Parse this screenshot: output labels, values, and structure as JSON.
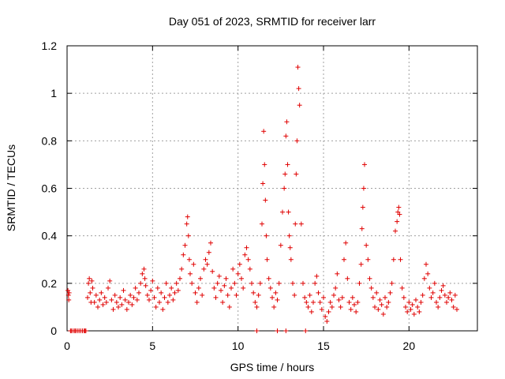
{
  "chart_data": {
    "type": "scatter",
    "title": "Day 051 of 2023, SRMTID for receiver larr",
    "xlabel": "GPS time / hours",
    "ylabel": "SRMTID / TECUs",
    "xlim": [
      0,
      24
    ],
    "ylim": [
      0,
      1.2
    ],
    "xticks": [
      0,
      5,
      10,
      15,
      20
    ],
    "xtick_labels": [
      "0",
      "5",
      "10",
      "15",
      "20"
    ],
    "yticks": [
      0,
      0.2,
      0.4,
      0.6,
      0.8,
      1.0,
      1.2
    ],
    "ytick_labels": [
      "0",
      "0.2",
      "0.4",
      "0.6",
      "0.8",
      "1",
      "1.2"
    ],
    "grid": true,
    "marker": "+",
    "marker_color": "#e00000",
    "series": [
      {
        "name": "SRMTID",
        "x": [
          0.05,
          0.08,
          0.1,
          0.12,
          0.2,
          0.25,
          0.35,
          0.45,
          0.5,
          0.6,
          0.7,
          0.8,
          0.9,
          1.0,
          1.05,
          1.1,
          1.2,
          1.25,
          1.3,
          1.35,
          1.4,
          1.45,
          1.5,
          1.6,
          1.7,
          1.8,
          1.9,
          2.0,
          2.1,
          2.2,
          2.3,
          2.4,
          2.5,
          2.6,
          2.7,
          2.8,
          2.9,
          3.0,
          3.1,
          3.2,
          3.3,
          3.4,
          3.5,
          3.6,
          3.7,
          3.8,
          3.9,
          4.0,
          4.1,
          4.2,
          4.3,
          4.4,
          4.5,
          4.55,
          4.6,
          4.7,
          4.8,
          4.9,
          5.0,
          5.1,
          5.2,
          5.3,
          5.4,
          5.5,
          5.6,
          5.7,
          5.8,
          5.9,
          6.0,
          6.1,
          6.2,
          6.3,
          6.4,
          6.5,
          6.6,
          6.7,
          6.8,
          6.9,
          7.0,
          7.05,
          7.1,
          7.15,
          7.2,
          7.3,
          7.4,
          7.5,
          7.6,
          7.7,
          7.8,
          7.9,
          8.0,
          8.1,
          8.2,
          8.3,
          8.4,
          8.5,
          8.6,
          8.7,
          8.8,
          8.9,
          9.0,
          9.1,
          9.2,
          9.3,
          9.4,
          9.5,
          9.6,
          9.7,
          9.8,
          9.9,
          10.0,
          10.1,
          10.2,
          10.3,
          10.4,
          10.5,
          10.6,
          10.7,
          10.8,
          10.9,
          11.0,
          11.1,
          11.2,
          11.3,
          11.4,
          11.45,
          11.5,
          11.55,
          11.6,
          11.65,
          11.7,
          11.8,
          11.9,
          12.0,
          12.1,
          12.2,
          12.3,
          12.4,
          12.5,
          12.6,
          12.7,
          12.75,
          12.8,
          12.85,
          12.9,
          12.95,
          13.0,
          13.05,
          13.1,
          13.2,
          13.3,
          13.35,
          13.4,
          13.45,
          13.5,
          13.55,
          13.6,
          13.7,
          13.8,
          13.9,
          14.0,
          14.1,
          14.2,
          14.3,
          14.4,
          14.5,
          14.6,
          14.7,
          14.8,
          14.9,
          15.0,
          15.1,
          15.2,
          15.3,
          15.4,
          15.5,
          15.6,
          15.7,
          15.8,
          15.9,
          16.0,
          16.1,
          16.2,
          16.3,
          16.4,
          16.5,
          16.6,
          16.7,
          16.8,
          16.9,
          17.0,
          17.1,
          17.2,
          17.25,
          17.3,
          17.35,
          17.4,
          17.5,
          17.6,
          17.7,
          17.8,
          17.9,
          18.0,
          18.1,
          18.2,
          18.3,
          18.4,
          18.5,
          18.6,
          18.7,
          18.8,
          18.9,
          19.0,
          19.1,
          19.2,
          19.3,
          19.35,
          19.4,
          19.45,
          19.5,
          19.6,
          19.7,
          19.8,
          19.9,
          20.0,
          20.1,
          20.2,
          20.3,
          20.4,
          20.5,
          20.6,
          20.7,
          20.8,
          20.9,
          21.0,
          21.1,
          21.2,
          21.3,
          21.4,
          21.5,
          21.6,
          21.7,
          21.8,
          21.9,
          22.0,
          22.1,
          22.2,
          22.3,
          22.4,
          22.5,
          22.6,
          22.7,
          22.8,
          11.1,
          12.3,
          12.8,
          13.95
        ],
        "y": [
          0.17,
          0.15,
          0.13,
          0.16,
          0.0,
          0.0,
          0.0,
          0.0,
          0.0,
          0.0,
          0.0,
          0.0,
          0.0,
          0.0,
          0.0,
          0.0,
          0.14,
          0.2,
          0.22,
          0.16,
          0.12,
          0.21,
          0.18,
          0.12,
          0.15,
          0.1,
          0.13,
          0.16,
          0.11,
          0.14,
          0.12,
          0.18,
          0.21,
          0.13,
          0.09,
          0.15,
          0.12,
          0.1,
          0.14,
          0.11,
          0.17,
          0.13,
          0.09,
          0.12,
          0.15,
          0.11,
          0.14,
          0.18,
          0.13,
          0.16,
          0.2,
          0.24,
          0.26,
          0.22,
          0.19,
          0.15,
          0.13,
          0.17,
          0.21,
          0.14,
          0.1,
          0.18,
          0.12,
          0.16,
          0.09,
          0.14,
          0.2,
          0.12,
          0.15,
          0.18,
          0.13,
          0.16,
          0.2,
          0.17,
          0.22,
          0.26,
          0.32,
          0.36,
          0.45,
          0.48,
          0.4,
          0.3,
          0.24,
          0.2,
          0.28,
          0.16,
          0.12,
          0.18,
          0.22,
          0.15,
          0.26,
          0.3,
          0.28,
          0.33,
          0.37,
          0.25,
          0.18,
          0.14,
          0.2,
          0.23,
          0.17,
          0.12,
          0.19,
          0.22,
          0.15,
          0.1,
          0.18,
          0.26,
          0.2,
          0.15,
          0.24,
          0.28,
          0.22,
          0.18,
          0.32,
          0.35,
          0.3,
          0.26,
          0.2,
          0.16,
          0.12,
          0.1,
          0.15,
          0.2,
          0.45,
          0.62,
          0.84,
          0.7,
          0.55,
          0.4,
          0.3,
          0.22,
          0.18,
          0.14,
          0.1,
          0.16,
          0.13,
          0.2,
          0.36,
          0.5,
          0.6,
          0.66,
          0.82,
          0.88,
          0.7,
          0.5,
          0.4,
          0.35,
          0.3,
          0.2,
          0.15,
          0.45,
          0.66,
          0.8,
          1.11,
          1.02,
          0.95,
          0.45,
          0.2,
          0.14,
          0.12,
          0.1,
          0.15,
          0.08,
          0.12,
          0.2,
          0.23,
          0.16,
          0.12,
          0.09,
          0.14,
          0.06,
          0.04,
          0.08,
          0.12,
          0.1,
          0.15,
          0.18,
          0.24,
          0.13,
          0.1,
          0.14,
          0.3,
          0.37,
          0.22,
          0.12,
          0.09,
          0.14,
          0.11,
          0.08,
          0.12,
          0.2,
          0.28,
          0.43,
          0.52,
          0.6,
          0.7,
          0.36,
          0.3,
          0.22,
          0.18,
          0.14,
          0.1,
          0.16,
          0.09,
          0.13,
          0.11,
          0.07,
          0.14,
          0.1,
          0.12,
          0.16,
          0.2,
          0.3,
          0.42,
          0.46,
          0.5,
          0.52,
          0.49,
          0.3,
          0.18,
          0.14,
          0.1,
          0.08,
          0.12,
          0.09,
          0.11,
          0.07,
          0.13,
          0.1,
          0.08,
          0.12,
          0.15,
          0.22,
          0.28,
          0.24,
          0.18,
          0.14,
          0.16,
          0.2,
          0.12,
          0.1,
          0.14,
          0.17,
          0.19,
          0.15,
          0.12,
          0.14,
          0.16,
          0.13,
          0.1,
          0.15,
          0.09,
          0.0,
          0.0,
          0.0,
          0.0
        ]
      }
    ]
  }
}
